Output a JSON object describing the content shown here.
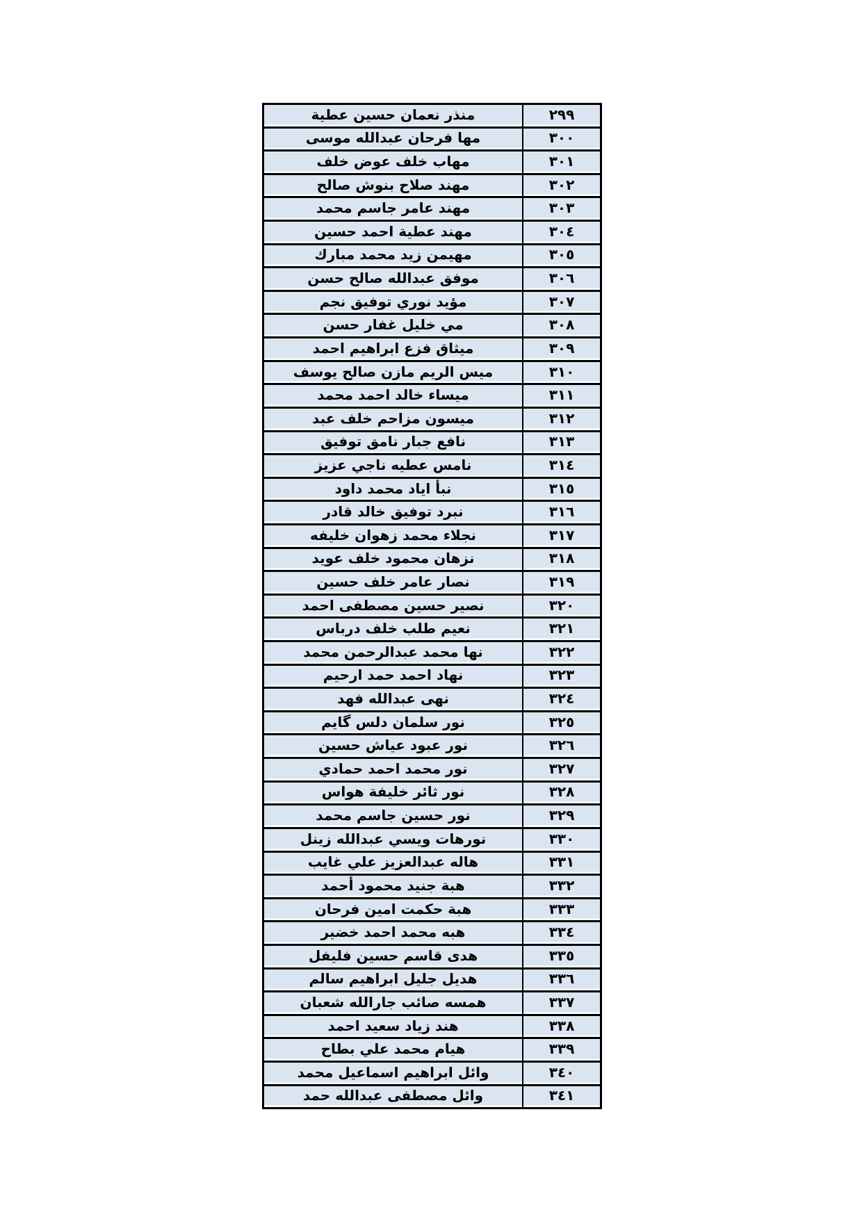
{
  "document": {
    "type": "roster-list-page",
    "language": "arabic",
    "colors": {
      "page_background": "#ffffff",
      "cell_background": "#dbe5f1",
      "border": "#000000",
      "text": "#000000"
    }
  },
  "table": {
    "columns": [
      {
        "id": "name",
        "description": "student full name (arabic)"
      },
      {
        "id": "serial",
        "description": "sequence number (eastern arabic numerals)"
      }
    ],
    "rows": [
      {
        "name": "منذر نعمان حسين عطية",
        "serial": "٢٩٩"
      },
      {
        "name": "مها فرحان عبدالله  موسى",
        "serial": "٣٠٠"
      },
      {
        "name": "مهاب خلف عوض خلف",
        "serial": "٣٠١"
      },
      {
        "name": "مهند صلاح بنوش صالح",
        "serial": "٣٠٢"
      },
      {
        "name": "مهند عامر جاسم محمد",
        "serial": "٣٠٣"
      },
      {
        "name": "مهند عطية احمد حسين",
        "serial": "٣٠٤"
      },
      {
        "name": "مهيمن زيد محمد مبارك",
        "serial": "٣٠٥"
      },
      {
        "name": "موفق عبدالله صالح حسن",
        "serial": "٣٠٦"
      },
      {
        "name": "مؤيد نوري توفيق نجم",
        "serial": "٣٠٧"
      },
      {
        "name": "مي  خليل غفار حسن",
        "serial": "٣٠٨"
      },
      {
        "name": "ميثاق فزع ابراهيم احمد",
        "serial": "٣٠٩"
      },
      {
        "name": "ميس الريم  مازن صالح يوسف",
        "serial": "٣١٠"
      },
      {
        "name": "ميساء خالد احمد محمد",
        "serial": "٣١١"
      },
      {
        "name": "ميسون مزاحم خلف عبد",
        "serial": "٣١٢"
      },
      {
        "name": "نافع جبار نامق توفيق",
        "serial": "٣١٣"
      },
      {
        "name": "نامس عطيه ناجي عزيز",
        "serial": "٣١٤"
      },
      {
        "name": "نبأ اياد محمد داود",
        "serial": "٣١٥"
      },
      {
        "name": "نبرد توفيق خالد قادر",
        "serial": "٣١٦"
      },
      {
        "name": "نجلاء محمد زهوان خليفه",
        "serial": "٣١٧"
      },
      {
        "name": "نزهان  محمود خلف عويد",
        "serial": "٣١٨"
      },
      {
        "name": "نصار عامر خلف  حسين",
        "serial": "٣١٩"
      },
      {
        "name": "نصير حسين مصطفى احمد",
        "serial": "٣٢٠"
      },
      {
        "name": "نعيم طلب خلف درباس",
        "serial": "٣٢١"
      },
      {
        "name": "نها محمد عبدالرحمن محمد",
        "serial": "٣٢٢"
      },
      {
        "name": "نهاد احمد حمد ارحيم",
        "serial": "٣٢٣"
      },
      {
        "name": "نهى عبدالله فهد",
        "serial": "٣٢٤"
      },
      {
        "name": "نور سلمان دلس گايم",
        "serial": "٣٢٥"
      },
      {
        "name": "نور عبود عياش  حسين",
        "serial": "٣٢٦"
      },
      {
        "name": "نور محمد  احمد حمادي",
        "serial": "٣٢٧"
      },
      {
        "name": "نور ثائر خليفة  هواس",
        "serial": "٣٢٨"
      },
      {
        "name": "نور حسين جاسم محمد",
        "serial": "٣٢٩"
      },
      {
        "name": "نورهات  ويسي عبدالله  زينل",
        "serial": "٣٣٠"
      },
      {
        "name": "هاله عبدالعزيز  علي غايب",
        "serial": "٣٣١"
      },
      {
        "name": "هبة جنيد محمود أحمد",
        "serial": "٣٣٢"
      },
      {
        "name": "هبة حكمت امين فرحان",
        "serial": "٣٣٣"
      },
      {
        "name": "هبه  محمد احمد خضير",
        "serial": "٣٣٤"
      },
      {
        "name": "هدى قاسم حسين فليفل",
        "serial": "٣٣٥"
      },
      {
        "name": "هديل جليل ابراهيم سالم",
        "serial": "٣٣٦"
      },
      {
        "name": "همسه صائب جارالله شعبان",
        "serial": "٣٣٧"
      },
      {
        "name": "هند زياد سعيد احمد",
        "serial": "٣٣٨"
      },
      {
        "name": "هيام محمد علي بطاح",
        "serial": "٣٣٩"
      },
      {
        "name": "وائل  ابراهيم اسماعيل محمد",
        "serial": "٣٤٠"
      },
      {
        "name": "وائل مصطفى عبدالله حمد",
        "serial": "٣٤١"
      }
    ]
  }
}
